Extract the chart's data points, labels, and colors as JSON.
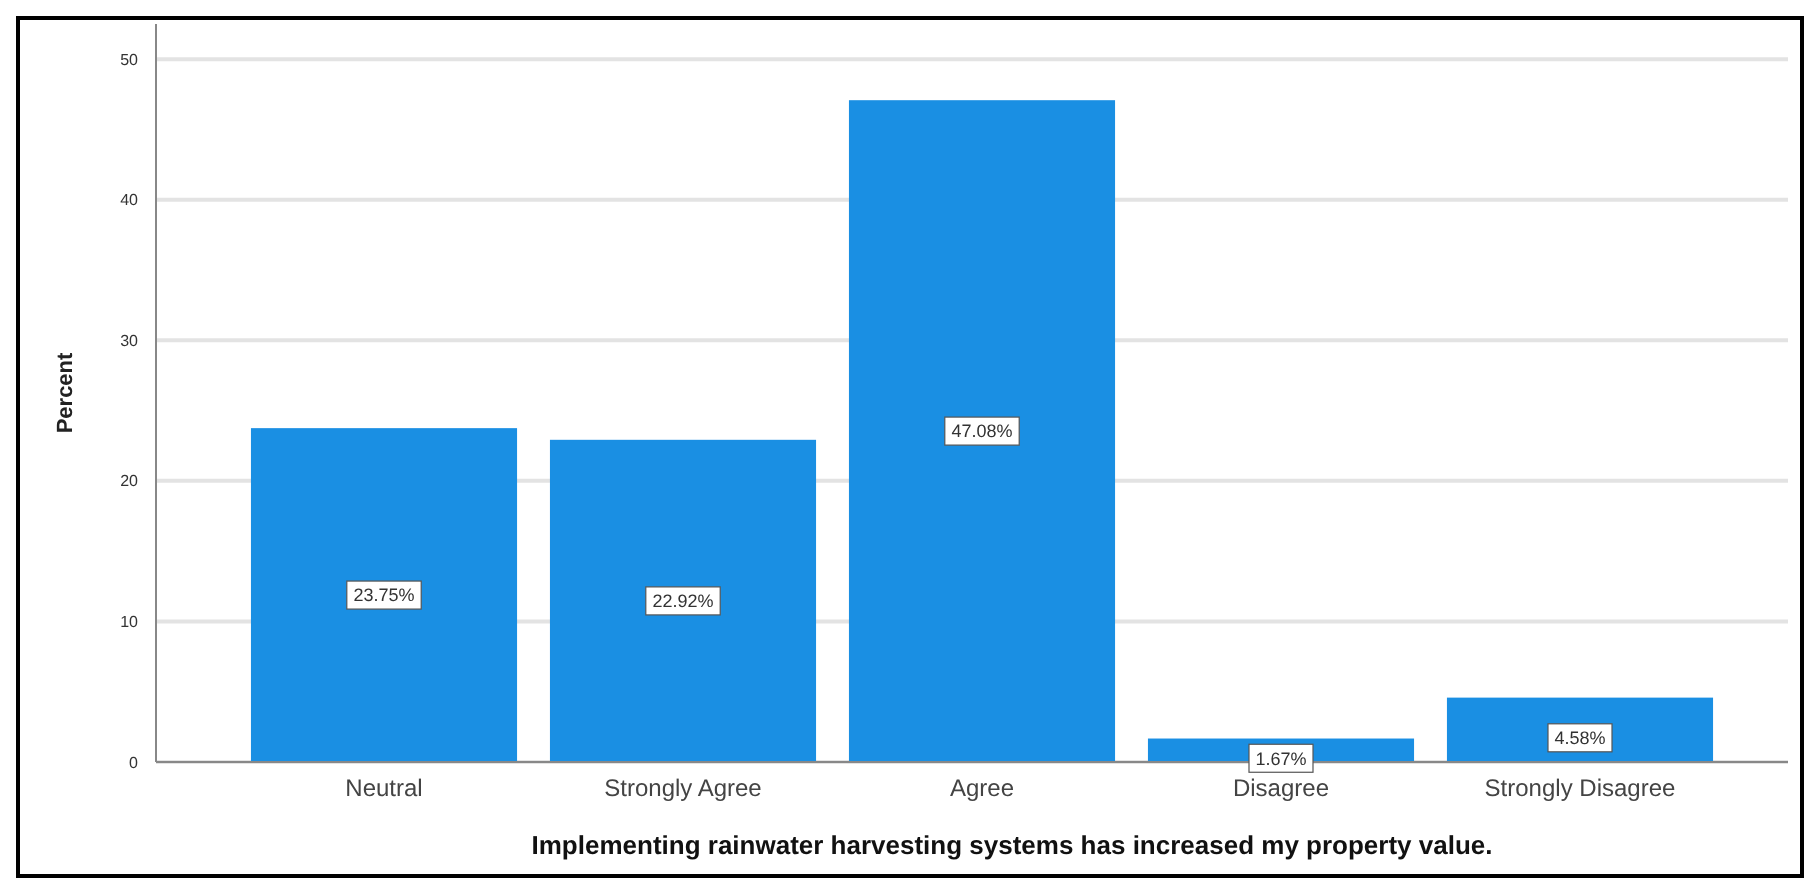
{
  "chart_data": {
    "type": "bar",
    "xlabel": "Implementing rainwater harvesting systems has increased my property value.",
    "ylabel": "Percent",
    "categories": [
      "Neutral",
      "Strongly Agree",
      "Agree",
      "Disagree",
      "Strongly Disagree"
    ],
    "values": [
      23.75,
      22.92,
      47.08,
      1.67,
      4.58
    ],
    "value_labels": [
      "23.75%",
      "22.92%",
      "47.08%",
      "1.67%",
      "4.58%"
    ],
    "color": "#1a8fe3",
    "ylim": [
      0,
      52.5
    ],
    "yticks": [
      0,
      10,
      20,
      30,
      40,
      50
    ],
    "grid": "y"
  }
}
